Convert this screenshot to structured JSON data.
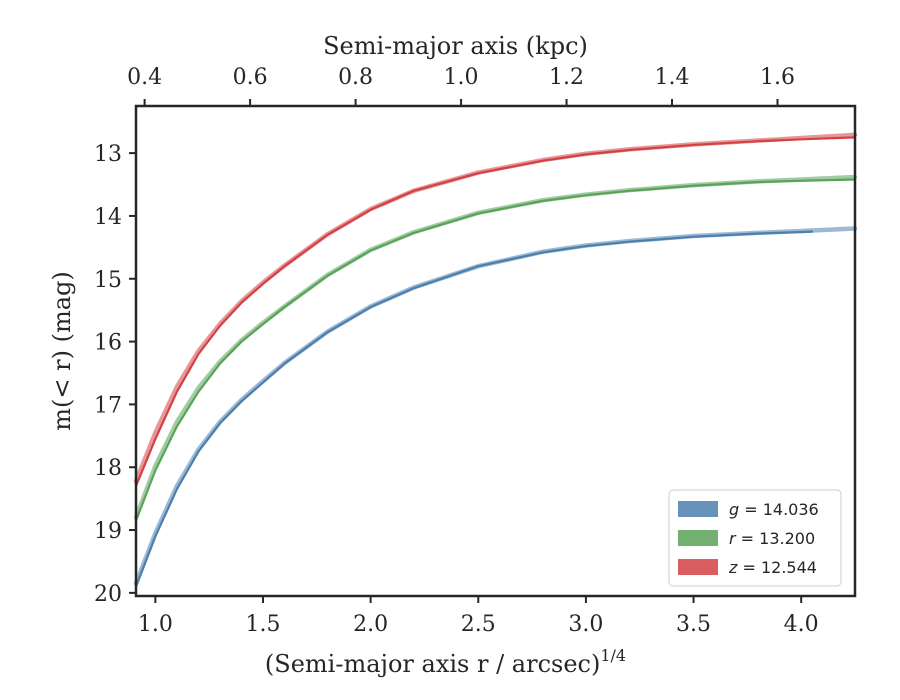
{
  "chart_data": {
    "type": "line",
    "xlabel": "(Semi-major axis r / arcsec)",
    "xlabel_sup": "1/4",
    "x2label": "Semi-major axis (kpc)",
    "ylabel": "m(< r) (mag)",
    "xlim": [
      0.91,
      4.25
    ],
    "ylim": [
      20.05,
      12.25
    ],
    "y_inverted": true,
    "xticks": [
      1.0,
      1.5,
      2.0,
      2.5,
      3.0,
      3.5,
      4.0
    ],
    "xtick_labels": [
      "1.0",
      "1.5",
      "2.0",
      "2.5",
      "3.0",
      "3.5",
      "4.0"
    ],
    "x2ticks": [
      0.4,
      0.6,
      0.8,
      1.0,
      1.2,
      1.4,
      1.6
    ],
    "x2tick_labels": [
      "0.4",
      "0.6",
      "0.8",
      "1.0",
      "1.2",
      "1.4",
      "1.6"
    ],
    "x2_at_bottom_ticks": [
      0.95,
      1.44,
      1.93,
      2.42,
      2.91,
      3.4,
      3.89
    ],
    "yticks": [
      13,
      14,
      15,
      16,
      17,
      18,
      19,
      20
    ],
    "ytick_labels": [
      "13",
      "14",
      "15",
      "16",
      "17",
      "18",
      "19",
      "20"
    ],
    "grid": false,
    "legend_position": "lower-right",
    "series": [
      {
        "name": "g = 14.036",
        "legend_var": "g",
        "legend_value": "14.036",
        "color": "#4c7fae",
        "x": [
          0.91,
          1.0,
          1.1,
          1.2,
          1.3,
          1.4,
          1.5,
          1.6,
          1.8,
          2.0,
          2.2,
          2.5,
          2.8,
          3.0,
          3.2,
          3.5,
          3.8,
          4.05
        ],
        "y": [
          19.9,
          19.1,
          18.35,
          17.75,
          17.3,
          16.95,
          16.65,
          16.35,
          15.85,
          15.45,
          15.15,
          14.8,
          14.58,
          14.48,
          14.41,
          14.33,
          14.28,
          14.25
        ],
        "model": {
          "x": [
            0.91,
            1.0,
            1.1,
            1.2,
            1.3,
            1.4,
            1.5,
            1.6,
            1.8,
            2.0,
            2.2,
            2.5,
            2.8,
            3.0,
            3.2,
            3.5,
            3.8,
            4.0,
            4.25
          ],
          "y": [
            19.85,
            19.05,
            18.3,
            17.72,
            17.28,
            16.93,
            16.63,
            16.34,
            15.84,
            15.44,
            15.14,
            14.8,
            14.57,
            14.47,
            14.4,
            14.32,
            14.27,
            14.24,
            14.2
          ]
        }
      },
      {
        "name": "r = 13.200",
        "legend_var": "r",
        "legend_value": "13.200",
        "color": "#5aa35a",
        "x": [
          0.91,
          1.0,
          1.1,
          1.2,
          1.3,
          1.4,
          1.5,
          1.6,
          1.8,
          2.0,
          2.2,
          2.5,
          2.8,
          3.0,
          3.2,
          3.5,
          3.8,
          4.0,
          4.25
        ],
        "y": [
          18.85,
          18.05,
          17.35,
          16.8,
          16.35,
          16.0,
          15.72,
          15.45,
          14.95,
          14.55,
          14.27,
          13.96,
          13.76,
          13.67,
          13.6,
          13.52,
          13.46,
          13.44,
          13.42
        ],
        "model": {
          "x": [
            0.91,
            1.0,
            1.1,
            1.2,
            1.3,
            1.4,
            1.5,
            1.6,
            1.8,
            2.0,
            2.2,
            2.5,
            2.8,
            3.0,
            3.2,
            3.5,
            3.8,
            4.0,
            4.25
          ],
          "y": [
            18.8,
            17.98,
            17.28,
            16.74,
            16.32,
            15.98,
            15.7,
            15.44,
            14.94,
            14.54,
            14.26,
            13.95,
            13.75,
            13.66,
            13.59,
            13.51,
            13.45,
            13.42,
            13.38
          ]
        }
      },
      {
        "name": "z = 12.544",
        "legend_var": "z",
        "legend_value": "12.544",
        "color": "#d44144",
        "x": [
          0.91,
          1.0,
          1.1,
          1.2,
          1.3,
          1.4,
          1.5,
          1.6,
          1.8,
          2.0,
          2.2,
          2.5,
          2.8,
          3.0,
          3.2,
          3.5,
          3.8,
          4.0,
          4.25
        ],
        "y": [
          18.3,
          17.55,
          16.8,
          16.2,
          15.75,
          15.38,
          15.08,
          14.8,
          14.3,
          13.9,
          13.6,
          13.32,
          13.12,
          13.02,
          12.95,
          12.87,
          12.81,
          12.78,
          12.75
        ],
        "model": {
          "x": [
            0.91,
            1.0,
            1.1,
            1.2,
            1.3,
            1.4,
            1.5,
            1.6,
            1.8,
            2.0,
            2.2,
            2.5,
            2.8,
            3.0,
            3.2,
            3.5,
            3.8,
            4.0,
            4.25
          ],
          "y": [
            18.22,
            17.45,
            16.72,
            16.15,
            15.72,
            15.36,
            15.06,
            14.79,
            14.29,
            13.89,
            13.6,
            13.31,
            13.11,
            13.01,
            12.94,
            12.86,
            12.8,
            12.76,
            12.71
          ]
        }
      }
    ]
  }
}
